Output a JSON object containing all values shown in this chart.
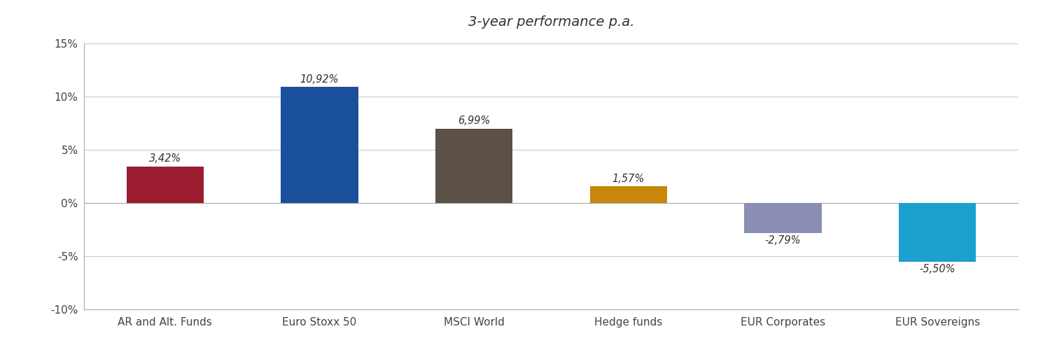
{
  "title": "3-year performance p.a.",
  "categories": [
    "AR and Alt. Funds",
    "Euro Stoxx 50",
    "MSCI World",
    "Hedge funds",
    "EUR Corporates",
    "EUR Sovereigns"
  ],
  "values": [
    3.42,
    10.92,
    6.99,
    1.57,
    -2.79,
    -5.5
  ],
  "labels": [
    "3,42%",
    "10,92%",
    "6,99%",
    "1,57%",
    "-2,79%",
    "-5,50%"
  ],
  "bar_colors": [
    "#9B1C2E",
    "#1A4F9C",
    "#5C5147",
    "#C8860A",
    "#8B8FB5",
    "#1CA0D0"
  ],
  "ylim": [
    -10,
    15
  ],
  "yticks": [
    -10,
    -5,
    0,
    5,
    10,
    15
  ],
  "ytick_labels": [
    "-10%",
    "-5%",
    "0%",
    "5%",
    "10%",
    "15%"
  ],
  "title_fontsize": 14,
  "label_fontsize": 10.5,
  "tick_fontsize": 11,
  "background_color": "#ffffff",
  "bar_width": 0.5,
  "spine_color": "#aaaaaa",
  "grid_color": "#cccccc"
}
